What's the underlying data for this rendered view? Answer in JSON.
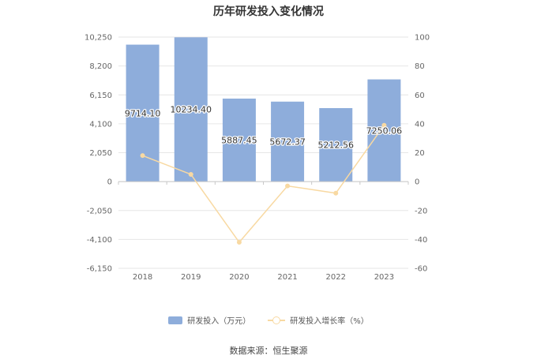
{
  "chart_data": {
    "type": "bar",
    "title": "历年研发投入变化情况",
    "categories": [
      "2018",
      "2019",
      "2020",
      "2021",
      "2022",
      "2023"
    ],
    "series": [
      {
        "name": "研发投入（万元）",
        "kind": "bar",
        "axis": "left",
        "color": "#8eaddb",
        "values": [
          9714.1,
          10234.4,
          5887.45,
          5672.37,
          5212.56,
          7250.06
        ],
        "labels": [
          "9714.10",
          "10234.40",
          "5887.45",
          "5672.37",
          "5212.56",
          "7250.06"
        ]
      },
      {
        "name": "研发投入增长率（%）",
        "kind": "line",
        "axis": "right",
        "color": "#f8d9a2",
        "values": [
          18,
          5,
          -42,
          -3,
          -8,
          39
        ]
      }
    ],
    "y_left": {
      "ylim": [
        -6150,
        10250
      ],
      "ticks": [
        "10,250",
        "8,200",
        "6,150",
        "4,100",
        "2,050",
        "0",
        "-2,050",
        "-4,100",
        "-6,150"
      ]
    },
    "y_right": {
      "ylim": [
        -60,
        100
      ],
      "ticks": [
        "100",
        "80",
        "60",
        "40",
        "20",
        "0",
        "-20",
        "-40",
        "-60"
      ]
    },
    "grid": true,
    "legend_position": "bottom",
    "source": "数据来源：恒生聚源"
  }
}
